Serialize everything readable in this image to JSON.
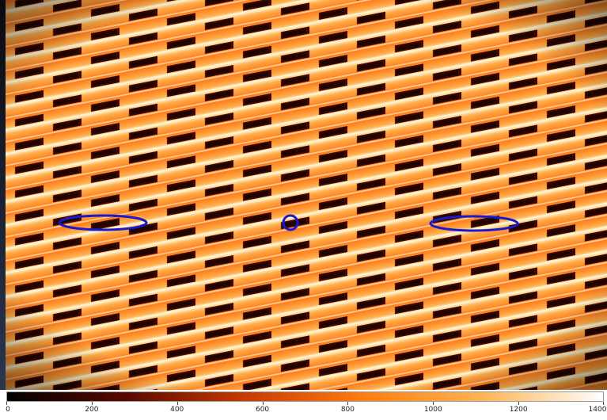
{
  "colormap": {
    "name": "heat",
    "stops": [
      "#000000",
      "#5a0800",
      "#c83a00",
      "#ff7e10",
      "#ffb455",
      "#ffffff"
    ]
  },
  "colorbar": {
    "min": 0,
    "max": 1400,
    "ticks": [
      "0",
      "200",
      "400",
      "600",
      "800",
      "1000",
      "1200",
      "1400"
    ]
  },
  "regions": [
    {
      "name": "ellipse-region-left",
      "shape": "ellipse",
      "color": "#1a1acc"
    },
    {
      "name": "circle-region-center",
      "shape": "circle",
      "color": "#1a1acc"
    },
    {
      "name": "ellipse-region-right",
      "shape": "ellipse",
      "color": "#1a1acc"
    }
  ]
}
